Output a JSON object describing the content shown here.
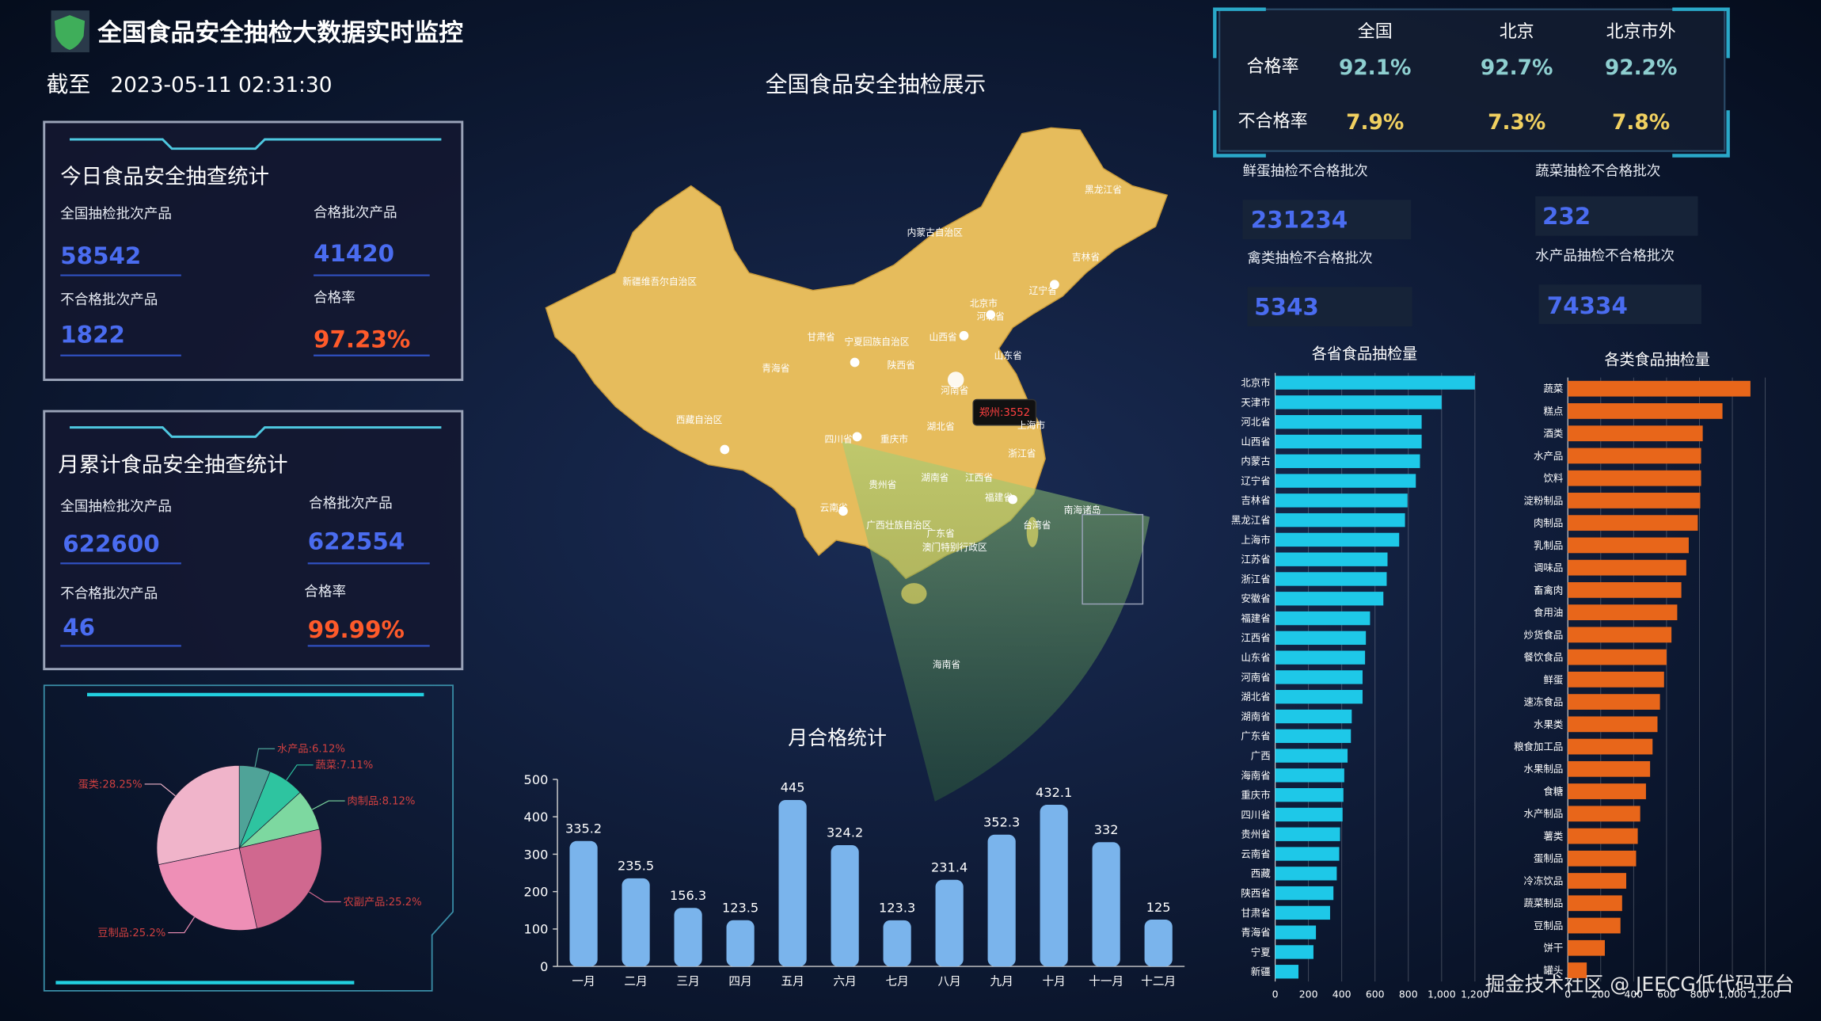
{
  "header": {
    "title": "全国食品安全抽检大数据实时监控",
    "as_of_label": "截至",
    "timestamp": "2023-05-11 02:31:30"
  },
  "today": {
    "title": "今日食品安全抽查统计",
    "items": [
      {
        "label": "全国抽检批次产品",
        "value": 58542
      },
      {
        "label": "合格批次产品",
        "value": 41420
      },
      {
        "label": "不合格批次产品",
        "value": 1822
      },
      {
        "label": "合格率",
        "value": "97.23%"
      }
    ]
  },
  "month": {
    "title": "月累计食品安全抽查统计",
    "items": [
      {
        "label": "全国抽检批次产品",
        "value": 622600
      },
      {
        "label": "合格批次产品",
        "value": 622554
      },
      {
        "label": "不合格批次产品",
        "value": 46
      },
      {
        "label": "合格率",
        "value": "99.99%"
      }
    ]
  },
  "rate_table": {
    "columns": [
      "全国",
      "北京",
      "北京市外"
    ],
    "rows": [
      {
        "label": "合格率",
        "cells": [
          "92.1%",
          "92.7%",
          "92.2%"
        ]
      },
      {
        "label": "不合格率",
        "cells": [
          "7.9%",
          "7.3%",
          "7.8%"
        ]
      }
    ]
  },
  "categories_stats": [
    {
      "label": "鲜蛋抽检不合格批次",
      "value": 231234
    },
    {
      "label": "蔬菜抽检不合格批次",
      "value": 232
    },
    {
      "label": "禽类抽检不合格批次",
      "value": 5343
    },
    {
      "label": "水产品抽检不合格批次",
      "value": 74334
    }
  ],
  "map": {
    "title": "全国食品安全抽检展示",
    "tooltip": "郑州:3552",
    "labels": [
      "黑龙江省",
      "内蒙古自治区",
      "吉林省",
      "新疆维吾尔自治区",
      "辽宁省",
      "北京市",
      "河北省",
      "甘肃省",
      "宁夏回族自治区",
      "山西省",
      "山东省",
      "青海省",
      "陕西省",
      "河南省",
      "西藏自治区",
      "四川省",
      "重庆市",
      "湖北省",
      "上海市",
      "浙江省",
      "湖南省",
      "江西省",
      "贵州省",
      "福建省",
      "云南省",
      "广西壮族自治区",
      "广东省",
      "台湾省",
      "南海诸岛",
      "澳门特别行政区",
      "海南省"
    ]
  },
  "watermark": "掘金技术社区 @ JEECG低代码平台",
  "chart_data": [
    {
      "type": "pie",
      "values": [
        6.12,
        7.11,
        8.12,
        25.2,
        25.2,
        28.25
      ],
      "value_labels": [
        "水产品:6.12%",
        "蔬菜:7.11%",
        "肉制品:8.12%",
        "农副产品:25.2%",
        "豆制品:25.2%",
        "蛋类:28.25%"
      ],
      "colors": [
        "#4fa398",
        "#2ec4a0",
        "#7dd8a0",
        "#d0688f",
        "#ee8fb6",
        "#f0b4ca"
      ]
    },
    {
      "type": "bar",
      "title": "月合格统计",
      "categories": [
        "一月",
        "二月",
        "三月",
        "四月",
        "五月",
        "六月",
        "七月",
        "八月",
        "九月",
        "十月",
        "十一月",
        "十二月"
      ],
      "values": [
        335.2,
        235.5,
        156.3,
        123.5,
        445,
        324.2,
        123.3,
        231.4,
        352.3,
        432.1,
        332,
        125
      ],
      "color": "#7ab4ec",
      "ylim": [
        0,
        500
      ],
      "yticks": [
        0,
        100,
        200,
        300,
        400,
        500
      ]
    },
    {
      "type": "bar",
      "orientation": "horizontal",
      "title": "各省食品抽检量",
      "categories": [
        "北京市",
        "天津市",
        "河北省",
        "山西省",
        "内蒙古",
        "辽宁省",
        "吉林省",
        "黑龙江省",
        "上海市",
        "江苏省",
        "浙江省",
        "安徽省",
        "福建省",
        "江西省",
        "山东省",
        "河南省",
        "湖北省",
        "湖南省",
        "广东省",
        "广西",
        "海南省",
        "重庆市",
        "四川省",
        "贵州省",
        "云南省",
        "西藏",
        "陕西省",
        "甘肃省",
        "青海省",
        "宁夏",
        "新疆"
      ],
      "values": [
        1200,
        1000,
        880,
        880,
        870,
        845,
        795,
        780,
        745,
        675,
        670,
        650,
        570,
        545,
        540,
        525,
        525,
        460,
        455,
        435,
        415,
        410,
        405,
        390,
        385,
        370,
        350,
        330,
        245,
        230,
        140
      ],
      "color": "#1ec8e8",
      "xlim": [
        0,
        1200
      ],
      "xticks": [
        0,
        200,
        400,
        600,
        800,
        {
          "value": 1000,
          "label": "1,000"
        },
        {
          "value": 1200,
          "label": "1,200"
        }
      ],
      "grid": true
    },
    {
      "type": "bar",
      "orientation": "horizontal",
      "title": "各类食品抽检量",
      "categories": [
        "蔬菜",
        "糕点",
        "酒类",
        "水产品",
        "饮料",
        "淀粉制品",
        "肉制品",
        "乳制品",
        "调味品",
        "畜禽肉",
        "食用油",
        "炒货食品",
        "餐饮食品",
        "鲜蛋",
        "速冻食品",
        "水果类",
        "粮食加工品",
        "水果制品",
        "食糖",
        "水产制品",
        "薯类",
        "蛋制品",
        "冷冻饮品",
        "蔬菜制品",
        "豆制品",
        "饼干",
        "罐头"
      ],
      "values": [
        1110,
        940,
        820,
        810,
        810,
        805,
        790,
        735,
        720,
        690,
        665,
        630,
        600,
        585,
        560,
        545,
        515,
        500,
        475,
        440,
        425,
        415,
        355,
        330,
        320,
        225,
        115
      ],
      "color": "#e8661a",
      "xlim": [
        0,
        1200
      ],
      "xticks": [
        0,
        200,
        400,
        600,
        800,
        {
          "value": 1000,
          "label": "1,000"
        },
        {
          "value": 1200,
          "label": "1,200"
        }
      ],
      "grid": true
    }
  ]
}
